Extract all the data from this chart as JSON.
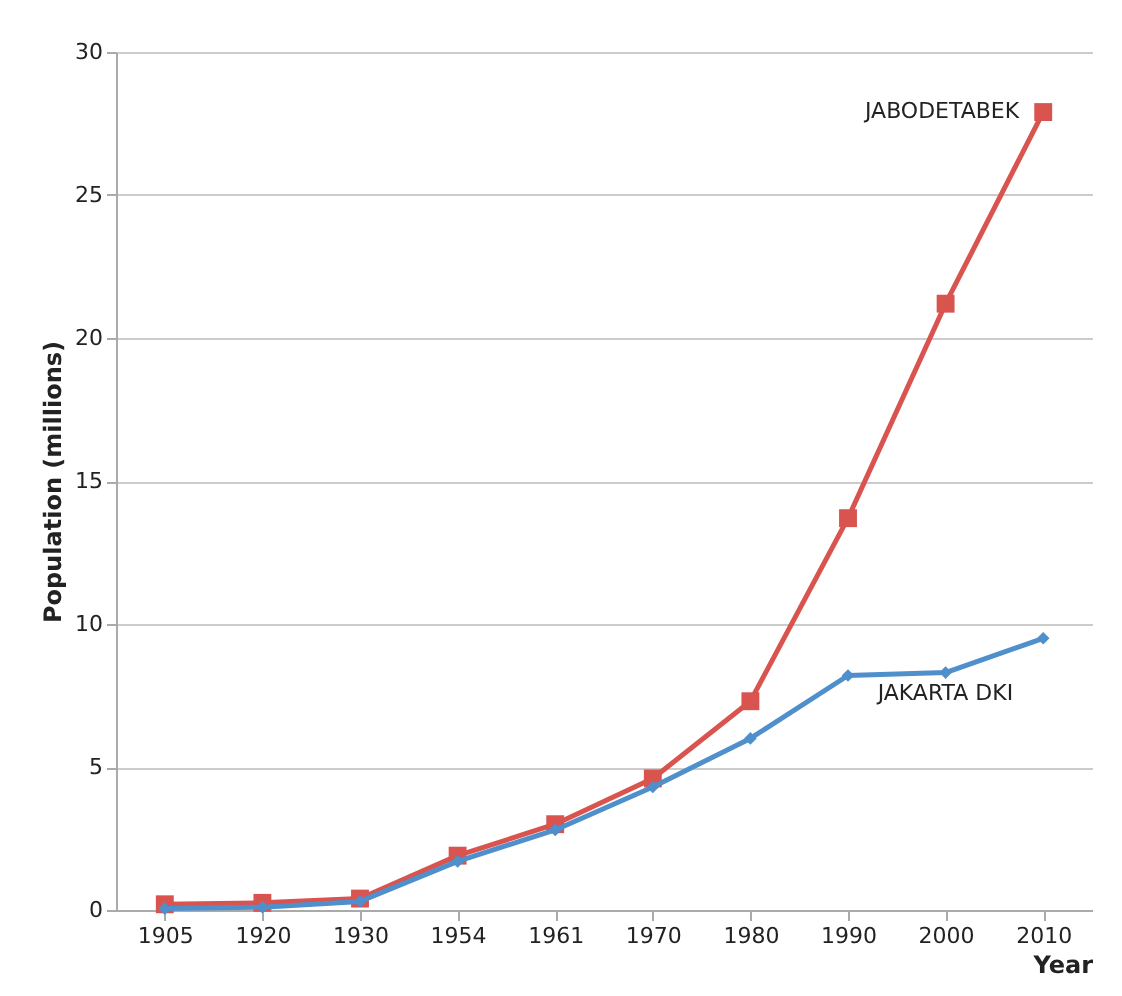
{
  "chart_data": {
    "type": "line",
    "xlabel": "Year",
    "ylabel": "Population (millions)",
    "categories": [
      "1905",
      "1920",
      "1930",
      "1954",
      "1961",
      "1970",
      "1980",
      "1990",
      "2000",
      "2010"
    ],
    "series": [
      {
        "name": "JABODETABEK",
        "color": "#d9534f",
        "marker": "square",
        "values": [
          0.2,
          0.25,
          0.4,
          1.9,
          3.0,
          4.6,
          7.3,
          13.7,
          21.2,
          27.9
        ]
      },
      {
        "name": "JAKARTA DKI",
        "color": "#4f8fcc",
        "marker": "diamond",
        "values": [
          0.05,
          0.1,
          0.3,
          1.7,
          2.8,
          4.3,
          6.0,
          8.2,
          8.3,
          9.5
        ]
      }
    ],
    "ylim": [
      0,
      30
    ],
    "yticks": [
      0,
      5,
      10,
      15,
      20,
      25,
      30
    ],
    "grid": "y",
    "legend": false,
    "line_style": "solid"
  }
}
